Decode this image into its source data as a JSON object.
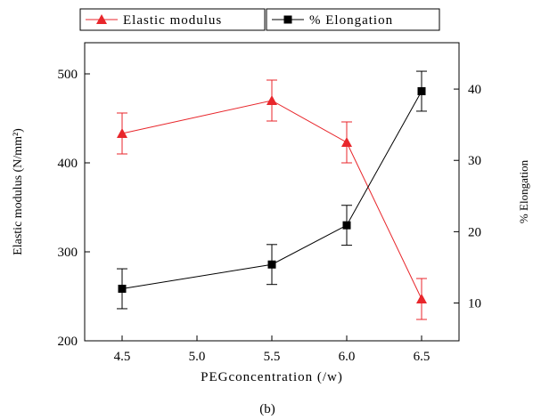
{
  "chart_data": {
    "type": "line",
    "caption": "(b)",
    "xlabel": "PEGconcentration  (/w)",
    "ylabel_left": "Elastic modulus (N/mm²)",
    "ylabel_right": "% Elongation",
    "x_ticks": [
      4.5,
      5.0,
      5.5,
      6.0,
      6.5
    ],
    "x_tick_labels": [
      "4.5",
      "5.0",
      "5.5",
      "6.0",
      "6.5"
    ],
    "y_left_ticks": [
      200,
      300,
      400,
      500
    ],
    "y_left_tick_labels": [
      "200",
      "300",
      "400",
      "500"
    ],
    "y_right_ticks": [
      10,
      20,
      30,
      40
    ],
    "y_right_tick_labels": [
      "10",
      "20",
      "30",
      "40"
    ],
    "xlim": [
      4.25,
      6.75
    ],
    "ylim_left": [
      200,
      535
    ],
    "ylim_right": [
      4.7,
      46.5
    ],
    "grid": false,
    "legend_position": "top",
    "series": [
      {
        "name": "Elastic modulus",
        "axis": "left",
        "color": "#e8262b",
        "marker": "triangle",
        "x": [
          4.5,
          5.5,
          6.0,
          6.5
        ],
        "y": [
          433,
          470,
          423,
          247
        ],
        "err": [
          23,
          23,
          23,
          23
        ]
      },
      {
        "name": "% Elongation",
        "axis": "right",
        "color": "#000000",
        "marker": "square",
        "x": [
          4.5,
          5.5,
          6.0,
          6.5
        ],
        "y": [
          12.0,
          15.4,
          20.9,
          39.7
        ],
        "err": [
          2.8,
          2.8,
          2.8,
          2.8
        ]
      }
    ]
  }
}
